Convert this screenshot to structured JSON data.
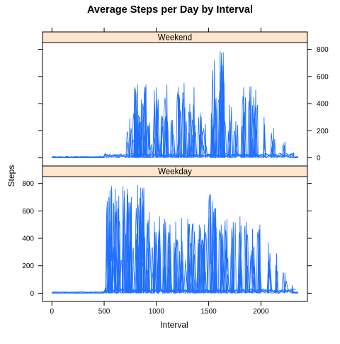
{
  "chart_data": {
    "type": "line",
    "title": "Average Steps per Day by Interval",
    "xlabel": "Interval",
    "ylabel": "Steps",
    "xlim": [
      -90,
      2445
    ],
    "ylim": [
      -60,
      850
    ],
    "x_ticks": [
      "0",
      "500",
      "1000",
      "1500",
      "2000"
    ],
    "x_tick_values": [
      0,
      500,
      1000,
      1500,
      2000
    ],
    "y_ticks": [
      "0",
      "200",
      "400",
      "600",
      "800"
    ],
    "y_tick_values": [
      0,
      200,
      400,
      600,
      800
    ],
    "layout": "two stacked panels sharing the x axis; y tick labels alternate sides (top panel right, bottom panel left)",
    "colors": {
      "line": "#1e6fff",
      "strip": "#ffe5cc",
      "frame": "#000000"
    },
    "panels": [
      {
        "name": "Weekend",
        "y_axis_side": "right",
        "peaks": [
          {
            "x": 630,
            "y": 0
          },
          {
            "x": 745,
            "y": 290
          },
          {
            "x": 790,
            "y": 520
          },
          {
            "x": 820,
            "y": 540
          },
          {
            "x": 855,
            "y": 430
          },
          {
            "x": 900,
            "y": 540
          },
          {
            "x": 935,
            "y": 260
          },
          {
            "x": 1000,
            "y": 520
          },
          {
            "x": 1045,
            "y": 310
          },
          {
            "x": 1100,
            "y": 540
          },
          {
            "x": 1155,
            "y": 280
          },
          {
            "x": 1210,
            "y": 520
          },
          {
            "x": 1265,
            "y": 550
          },
          {
            "x": 1320,
            "y": 400
          },
          {
            "x": 1360,
            "y": 520
          },
          {
            "x": 1420,
            "y": 330
          },
          {
            "x": 1470,
            "y": 250
          },
          {
            "x": 1525,
            "y": 330
          },
          {
            "x": 1555,
            "y": 720
          },
          {
            "x": 1610,
            "y": 785
          },
          {
            "x": 1640,
            "y": 780
          },
          {
            "x": 1700,
            "y": 390
          },
          {
            "x": 1760,
            "y": 270
          },
          {
            "x": 1835,
            "y": 520
          },
          {
            "x": 1905,
            "y": 530
          },
          {
            "x": 1950,
            "y": 500
          },
          {
            "x": 2030,
            "y": 300
          },
          {
            "x": 2120,
            "y": 220
          },
          {
            "x": 2230,
            "y": 120
          },
          {
            "x": 2310,
            "y": 40
          }
        ]
      },
      {
        "name": "Weekday",
        "y_axis_side": "left",
        "peaks": [
          {
            "x": 510,
            "y": 40
          },
          {
            "x": 545,
            "y": 700
          },
          {
            "x": 570,
            "y": 780
          },
          {
            "x": 605,
            "y": 760
          },
          {
            "x": 640,
            "y": 710
          },
          {
            "x": 680,
            "y": 780
          },
          {
            "x": 720,
            "y": 760
          },
          {
            "x": 760,
            "y": 700
          },
          {
            "x": 820,
            "y": 790
          },
          {
            "x": 850,
            "y": 770
          },
          {
            "x": 880,
            "y": 770
          },
          {
            "x": 930,
            "y": 590
          },
          {
            "x": 980,
            "y": 520
          },
          {
            "x": 1030,
            "y": 560
          },
          {
            "x": 1080,
            "y": 540
          },
          {
            "x": 1130,
            "y": 500
          },
          {
            "x": 1185,
            "y": 520
          },
          {
            "x": 1240,
            "y": 550
          },
          {
            "x": 1300,
            "y": 540
          },
          {
            "x": 1350,
            "y": 510
          },
          {
            "x": 1410,
            "y": 500
          },
          {
            "x": 1460,
            "y": 500
          },
          {
            "x": 1520,
            "y": 720
          },
          {
            "x": 1560,
            "y": 620
          },
          {
            "x": 1620,
            "y": 500
          },
          {
            "x": 1675,
            "y": 540
          },
          {
            "x": 1735,
            "y": 520
          },
          {
            "x": 1800,
            "y": 560
          },
          {
            "x": 1860,
            "y": 520
          },
          {
            "x": 1920,
            "y": 470
          },
          {
            "x": 1990,
            "y": 500
          },
          {
            "x": 2070,
            "y": 370
          },
          {
            "x": 2150,
            "y": 290
          },
          {
            "x": 2230,
            "y": 150
          },
          {
            "x": 2300,
            "y": 60
          }
        ]
      }
    ],
    "x_start": 0,
    "x_end": 2355
  }
}
